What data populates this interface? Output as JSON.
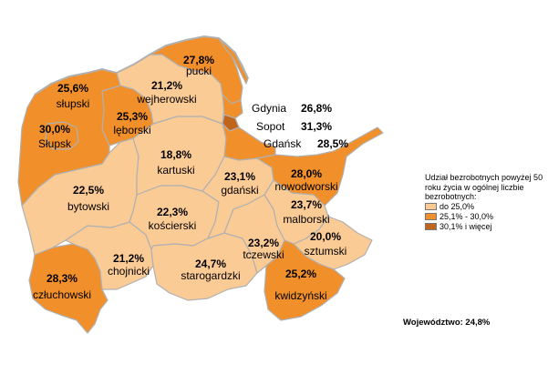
{
  "colors": {
    "low": "#FBCB95",
    "mid": "#F1902A",
    "high": "#C0651C",
    "border": "#B0B0B0"
  },
  "districts": [
    {
      "id": "pucki",
      "name": "pucki",
      "value": "27,8%",
      "class": "mid"
    },
    {
      "id": "slupski",
      "name": "słupski",
      "value": "25,6%",
      "class": "mid"
    },
    {
      "id": "slupsk",
      "name": "Słupsk",
      "value": "30,0%",
      "class": "mid"
    },
    {
      "id": "leborski",
      "name": "lęborski",
      "value": "25,3%",
      "class": "mid"
    },
    {
      "id": "wejherowski",
      "name": "wejherowski",
      "value": "21,2%",
      "class": "low"
    },
    {
      "id": "kartuski",
      "name": "kartuski",
      "value": "18,8%",
      "class": "low"
    },
    {
      "id": "bytowski",
      "name": "bytowski",
      "value": "22,5%",
      "class": "low"
    },
    {
      "id": "koscierski",
      "name": "kościerski",
      "value": "22,3%",
      "class": "low"
    },
    {
      "id": "gdanski",
      "name": "gdański",
      "value": "23,1%",
      "class": "low"
    },
    {
      "id": "nowodworski",
      "name": "nowodworski",
      "value": "28,0%",
      "class": "mid"
    },
    {
      "id": "malborski",
      "name": "malborski",
      "value": "23,7%",
      "class": "low"
    },
    {
      "id": "tczewski",
      "name": "tczewski",
      "value": "23,2%",
      "class": "low"
    },
    {
      "id": "sztumski",
      "name": "sztumski",
      "value": "20,0%",
      "class": "low"
    },
    {
      "id": "kwidzynski",
      "name": "kwidzyński",
      "value": "25,2%",
      "class": "mid"
    },
    {
      "id": "starogardzki",
      "name": "starogardzki",
      "value": "24,7%",
      "class": "low"
    },
    {
      "id": "chojnicki",
      "name": "chojnicki",
      "value": "21,2%",
      "class": "low"
    },
    {
      "id": "czluchowski",
      "name": "człuchowski",
      "value": "28,3%",
      "class": "mid"
    }
  ],
  "cities": [
    {
      "name": "Gdynia",
      "value": "26,8%"
    },
    {
      "name": "Sopot",
      "value": "31,3%"
    },
    {
      "name": "Gdańsk",
      "value": "28,5%"
    }
  ],
  "legend": {
    "title": "Udział bezrobotnych powyżej 50 roku życia w ogólnej liczbie bezrobotnych:",
    "items": [
      {
        "label": "do 25,0%",
        "class": "low"
      },
      {
        "label": "25,1% - 30,0%",
        "class": "mid"
      },
      {
        "label": "30,1% i więcej",
        "class": "high"
      }
    ]
  },
  "total": "Województwo: 24,8%"
}
